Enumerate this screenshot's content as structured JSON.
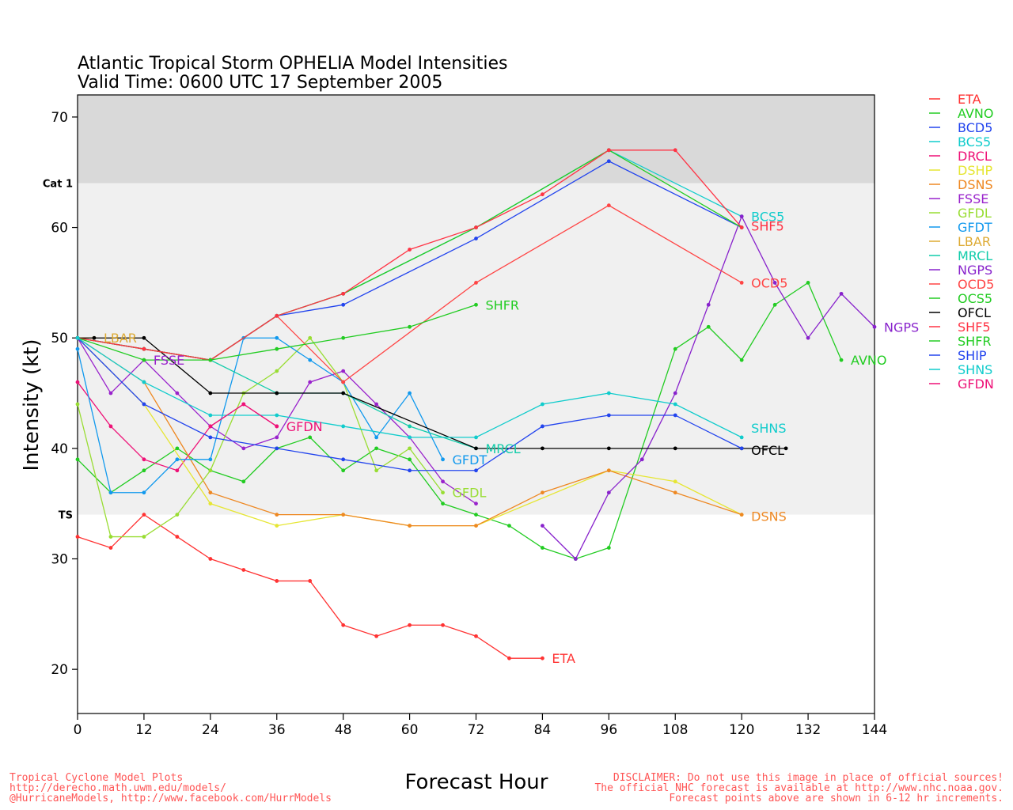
{
  "chart_data": {
    "type": "line",
    "title": "Atlantic Tropical Storm OPHELIA Model Intensities",
    "subtitle": "Valid Time: 0600 UTC 17 September 2005",
    "xlabel": "Forecast Hour",
    "ylabel": "Intensity (kt)",
    "xlim": [
      0,
      144
    ],
    "ylim": [
      16,
      72
    ],
    "x_ticks": [
      "0",
      "12",
      "24",
      "36",
      "48",
      "60",
      "72",
      "84",
      "96",
      "108",
      "120",
      "132",
      "144"
    ],
    "y_ticks": [
      "20",
      "30",
      "40",
      "50",
      "60",
      "70"
    ],
    "bands": [
      {
        "label": "Cat 1",
        "from": 64,
        "to": 72,
        "color": "#d9d9d9"
      },
      {
        "label": "TS",
        "from": 34,
        "to": 64,
        "color": "#f0f0f0"
      }
    ],
    "legend_placement": "right",
    "series": [
      {
        "name": "ETA",
        "color": "#ff3333",
        "label_at": 84,
        "points": [
          [
            0,
            32
          ],
          [
            6,
            31
          ],
          [
            12,
            34
          ],
          [
            18,
            32
          ],
          [
            24,
            30
          ],
          [
            30,
            29
          ],
          [
            36,
            28
          ],
          [
            42,
            28
          ],
          [
            48,
            24
          ],
          [
            54,
            23
          ],
          [
            60,
            24
          ],
          [
            66,
            24
          ],
          [
            72,
            23
          ],
          [
            78,
            21
          ],
          [
            84,
            21
          ]
        ]
      },
      {
        "name": "AVNO",
        "color": "#22cc22",
        "label_at": 138,
        "points": [
          [
            0,
            39
          ],
          [
            6,
            36
          ],
          [
            12,
            38
          ],
          [
            18,
            40
          ],
          [
            24,
            38
          ],
          [
            30,
            37
          ],
          [
            36,
            40
          ],
          [
            42,
            41
          ],
          [
            48,
            38
          ],
          [
            54,
            40
          ],
          [
            60,
            39
          ],
          [
            66,
            35
          ],
          [
            72,
            34
          ],
          [
            78,
            33
          ],
          [
            84,
            31
          ],
          [
            90,
            30
          ],
          [
            96,
            31
          ],
          [
            108,
            49
          ],
          [
            114,
            51
          ],
          [
            120,
            48
          ],
          [
            126,
            53
          ],
          [
            132,
            55
          ],
          [
            138,
            48
          ]
        ]
      },
      {
        "name": "BCD5",
        "color": "#2244ee",
        "label_at": null,
        "points": [
          [
            0,
            50
          ],
          [
            12,
            49
          ],
          [
            24,
            48
          ],
          [
            36,
            52
          ],
          [
            48,
            53
          ],
          [
            72,
            59
          ],
          [
            96,
            66
          ],
          [
            120,
            60
          ]
        ]
      },
      {
        "name": "BCS5",
        "color": "#11cccc",
        "label_at": 120,
        "points": [
          [
            0,
            50
          ],
          [
            12,
            49
          ],
          [
            24,
            48
          ],
          [
            36,
            52
          ],
          [
            48,
            54
          ],
          [
            72,
            60
          ],
          [
            96,
            67
          ],
          [
            120,
            61
          ]
        ]
      },
      {
        "name": "DRCL",
        "color": "#ee1177",
        "label_at": null,
        "points": [
          [
            0,
            46
          ],
          [
            6,
            42
          ],
          [
            12,
            39
          ],
          [
            18,
            38
          ],
          [
            24,
            42
          ],
          [
            30,
            44
          ],
          [
            36,
            42
          ]
        ]
      },
      {
        "name": "DSHP",
        "color": "#e6e633",
        "label_at": null,
        "points": [
          [
            0,
            50
          ],
          [
            12,
            44
          ],
          [
            24,
            35
          ],
          [
            36,
            33
          ],
          [
            48,
            34
          ],
          [
            60,
            33
          ],
          [
            72,
            33
          ],
          [
            96,
            38
          ],
          [
            108,
            37
          ],
          [
            120,
            34
          ]
        ]
      },
      {
        "name": "DSNS",
        "color": "#ee8822",
        "label_at": 120,
        "points": [
          [
            0,
            50
          ],
          [
            12,
            46
          ],
          [
            24,
            36
          ],
          [
            36,
            34
          ],
          [
            48,
            34
          ],
          [
            60,
            33
          ],
          [
            72,
            33
          ],
          [
            84,
            36
          ],
          [
            96,
            38
          ],
          [
            108,
            36
          ],
          [
            120,
            34
          ]
        ]
      },
      {
        "name": "FSSE",
        "color": "#9922cc",
        "label_at": 12,
        "points": [
          [
            0,
            50
          ],
          [
            6,
            45
          ],
          [
            12,
            48
          ],
          [
            18,
            45
          ],
          [
            24,
            42
          ],
          [
            30,
            40
          ],
          [
            36,
            41
          ],
          [
            42,
            46
          ],
          [
            48,
            47
          ],
          [
            54,
            44
          ],
          [
            60,
            41
          ],
          [
            66,
            37
          ],
          [
            72,
            35
          ]
        ]
      },
      {
        "name": "GFDL",
        "color": "#99dd33",
        "label_at": 66,
        "points": [
          [
            0,
            44
          ],
          [
            6,
            32
          ],
          [
            12,
            32
          ],
          [
            18,
            34
          ],
          [
            24,
            38
          ],
          [
            30,
            45
          ],
          [
            36,
            47
          ],
          [
            42,
            50
          ],
          [
            48,
            46
          ],
          [
            54,
            38
          ],
          [
            60,
            40
          ],
          [
            66,
            36
          ]
        ]
      },
      {
        "name": "GFDT",
        "color": "#1199ee",
        "label_at": 66,
        "points": [
          [
            0,
            49
          ],
          [
            6,
            36
          ],
          [
            12,
            36
          ],
          [
            18,
            39
          ],
          [
            24,
            39
          ],
          [
            30,
            50
          ],
          [
            36,
            50
          ],
          [
            42,
            48
          ],
          [
            48,
            46
          ],
          [
            54,
            41
          ],
          [
            60,
            45
          ],
          [
            66,
            39
          ]
        ]
      },
      {
        "name": "LBAR",
        "color": "#ddaa33",
        "label_at": 3,
        "points": [
          [
            0,
            50
          ],
          [
            3,
            50
          ]
        ]
      },
      {
        "name": "MRCL",
        "color": "#11ccaa",
        "label_at": 72,
        "points": [
          [
            0,
            50
          ],
          [
            12,
            49
          ],
          [
            24,
            48
          ],
          [
            36,
            45
          ],
          [
            48,
            45
          ],
          [
            60,
            42
          ],
          [
            72,
            40
          ]
        ]
      },
      {
        "name": "NGPS",
        "color": "#8822cc",
        "label_at": 144,
        "points": [
          [
            84,
            33
          ],
          [
            90,
            30
          ],
          [
            96,
            36
          ],
          [
            102,
            39
          ],
          [
            108,
            45
          ],
          [
            114,
            53
          ],
          [
            120,
            61
          ],
          [
            126,
            55
          ],
          [
            132,
            50
          ],
          [
            138,
            54
          ],
          [
            144,
            51
          ]
        ]
      },
      {
        "name": "OCD5",
        "color": "#ff4444",
        "label_at": 120,
        "points": [
          [
            0,
            50
          ],
          [
            12,
            49
          ],
          [
            24,
            48
          ],
          [
            36,
            52
          ],
          [
            48,
            46
          ],
          [
            72,
            55
          ],
          [
            96,
            62
          ],
          [
            120,
            55
          ]
        ]
      },
      {
        "name": "OCS5",
        "color": "#22cc22",
        "label_at": null,
        "points": [
          [
            0,
            50
          ],
          [
            12,
            49
          ],
          [
            24,
            48
          ],
          [
            36,
            52
          ],
          [
            48,
            54
          ],
          [
            72,
            60
          ],
          [
            96,
            67
          ],
          [
            120,
            60
          ]
        ]
      },
      {
        "name": "OFCL",
        "color": "#000000",
        "label_at": 120,
        "points": [
          [
            0,
            50
          ],
          [
            3,
            50
          ],
          [
            12,
            50
          ],
          [
            24,
            45
          ],
          [
            36,
            45
          ],
          [
            48,
            45
          ],
          [
            72,
            40
          ],
          [
            84,
            40
          ],
          [
            96,
            40
          ],
          [
            108,
            40
          ],
          [
            120,
            40
          ],
          [
            128,
            40
          ]
        ]
      },
      {
        "name": "SHF5",
        "color": "#ff3344",
        "label_at": 120,
        "points": [
          [
            0,
            50
          ],
          [
            12,
            49
          ],
          [
            24,
            48
          ],
          [
            36,
            52
          ],
          [
            48,
            54
          ],
          [
            60,
            58
          ],
          [
            72,
            60
          ],
          [
            84,
            63
          ],
          [
            96,
            67
          ],
          [
            108,
            67
          ],
          [
            120,
            60
          ]
        ]
      },
      {
        "name": "SHFR",
        "color": "#22cc22",
        "label_at": 72,
        "points": [
          [
            0,
            50
          ],
          [
            12,
            48
          ],
          [
            24,
            48
          ],
          [
            36,
            49
          ],
          [
            48,
            50
          ],
          [
            60,
            51
          ],
          [
            72,
            53
          ]
        ]
      },
      {
        "name": "SHIP",
        "color": "#2244ee",
        "label_at": null,
        "points": [
          [
            0,
            50
          ],
          [
            12,
            44
          ],
          [
            24,
            41
          ],
          [
            36,
            40
          ],
          [
            48,
            39
          ],
          [
            60,
            38
          ],
          [
            72,
            38
          ],
          [
            84,
            42
          ],
          [
            96,
            43
          ],
          [
            108,
            43
          ],
          [
            120,
            40
          ]
        ]
      },
      {
        "name": "SHNS",
        "color": "#11cccc",
        "label_at": 120,
        "points": [
          [
            0,
            50
          ],
          [
            12,
            46
          ],
          [
            24,
            43
          ],
          [
            36,
            43
          ],
          [
            48,
            42
          ],
          [
            60,
            41
          ],
          [
            72,
            41
          ],
          [
            84,
            44
          ],
          [
            96,
            45
          ],
          [
            108,
            44
          ],
          [
            120,
            41
          ]
        ]
      },
      {
        "name": "GFDN",
        "color": "#ee1177",
        "label_at": 36,
        "points": [
          [
            24,
            42
          ],
          [
            30,
            44
          ],
          [
            36,
            42
          ]
        ]
      }
    ]
  },
  "end_labels": {
    "ETA": "ETA",
    "AVNO": "AVNO",
    "BCS5": "BCS5",
    "DSNS": "DSNS",
    "FSSE": "FSSE",
    "GFDL": "GFDL",
    "GFDT": "GFDT",
    "LBAR": "LBAR",
    "MRCL": "MRCL",
    "NGPS": "NGPS",
    "OCD5": "OCD5",
    "OFCL": "OFCL",
    "SHF5": "SHF5",
    "SHFR": "SHFR",
    "SHNS": "SHNS",
    "GFDN": "GFDN",
    "DRCL": "DRCL"
  },
  "footer": {
    "left_lines": [
      "Tropical Cyclone Model Plots",
      "http://derecho.math.uwm.edu/models/",
      "@HurricaneModels, http://www.facebook.com/HurrModels"
    ],
    "right_lines": [
      "DISCLAIMER: Do not use this image in place of official sources!",
      "The official NHC forecast is available at http://www.nhc.noaa.gov.",
      "Forecast points above are shown in 6-12 hr increments."
    ]
  }
}
